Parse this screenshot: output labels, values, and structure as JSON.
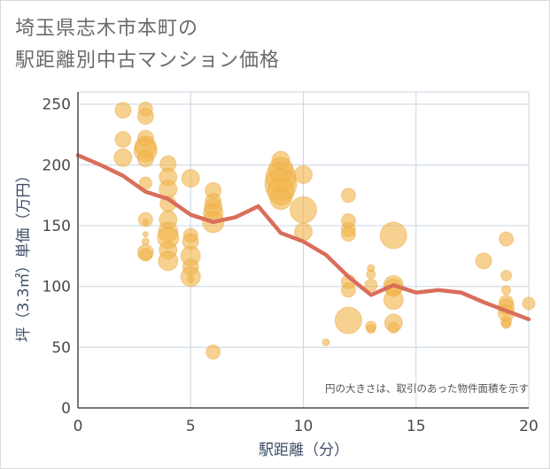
{
  "title_lines": [
    "埼玉県志木市本町の",
    "駅距離別中古マンション価格"
  ],
  "chart_data": {
    "type": "scatter",
    "title": "埼玉県志木市本町の駅距離別中古マンション価格",
    "xlabel": "駅距離（分）",
    "ylabel": "坪（3.3㎡）単価（万円）",
    "xlim": [
      0,
      20
    ],
    "ylim": [
      0,
      260
    ],
    "xticks": [
      0,
      5,
      10,
      15,
      20
    ],
    "yticks": [
      0,
      50,
      100,
      150,
      200,
      250
    ],
    "grid": true,
    "annotation": "円の大きさは、取引のあった物件面積を示す",
    "colors": {
      "bubble": "#f0b44c",
      "bubble_edge": "#e9a63a",
      "line": "#d96e5a",
      "grid": "#c9d6e3",
      "axis": "#4a4a4a"
    },
    "bubbles": [
      {
        "x": 2,
        "y": 245,
        "r": 9
      },
      {
        "x": 2,
        "y": 221,
        "r": 9
      },
      {
        "x": 2,
        "y": 206,
        "r": 10
      },
      {
        "x": 3,
        "y": 246,
        "r": 8
      },
      {
        "x": 3,
        "y": 240,
        "r": 9
      },
      {
        "x": 3,
        "y": 222,
        "r": 9
      },
      {
        "x": 3,
        "y": 215,
        "r": 12
      },
      {
        "x": 3,
        "y": 212,
        "r": 13
      },
      {
        "x": 3,
        "y": 205,
        "r": 9
      },
      {
        "x": 3,
        "y": 185,
        "r": 7
      },
      {
        "x": 3,
        "y": 155,
        "r": 8
      },
      {
        "x": 3,
        "y": 153,
        "r": 3
      },
      {
        "x": 3,
        "y": 143,
        "r": 3
      },
      {
        "x": 3,
        "y": 137,
        "r": 4
      },
      {
        "x": 3,
        "y": 128,
        "r": 9
      },
      {
        "x": 3,
        "y": 126,
        "r": 7
      },
      {
        "x": 4,
        "y": 201,
        "r": 9
      },
      {
        "x": 4,
        "y": 190,
        "r": 10
      },
      {
        "x": 4,
        "y": 180,
        "r": 10
      },
      {
        "x": 4,
        "y": 168,
        "r": 9
      },
      {
        "x": 4,
        "y": 155,
        "r": 10
      },
      {
        "x": 4,
        "y": 145,
        "r": 11
      },
      {
        "x": 4,
        "y": 140,
        "r": 12
      },
      {
        "x": 4,
        "y": 130,
        "r": 10
      },
      {
        "x": 4,
        "y": 121,
        "r": 11
      },
      {
        "x": 5,
        "y": 189,
        "r": 10
      },
      {
        "x": 5,
        "y": 142,
        "r": 8
      },
      {
        "x": 5,
        "y": 137,
        "r": 9
      },
      {
        "x": 5,
        "y": 125,
        "r": 11
      },
      {
        "x": 5,
        "y": 116,
        "r": 9
      },
      {
        "x": 5,
        "y": 108,
        "r": 11
      },
      {
        "x": 5,
        "y": 106,
        "r": 4
      },
      {
        "x": 6,
        "y": 179,
        "r": 9
      },
      {
        "x": 6,
        "y": 170,
        "r": 9
      },
      {
        "x": 6,
        "y": 165,
        "r": 10
      },
      {
        "x": 6,
        "y": 160,
        "r": 11
      },
      {
        "x": 6,
        "y": 153,
        "r": 12
      },
      {
        "x": 6,
        "y": 46,
        "r": 8
      },
      {
        "x": 9,
        "y": 204,
        "r": 10
      },
      {
        "x": 9,
        "y": 196,
        "r": 14
      },
      {
        "x": 9,
        "y": 190,
        "r": 17
      },
      {
        "x": 9,
        "y": 184,
        "r": 18
      },
      {
        "x": 9,
        "y": 178,
        "r": 15
      },
      {
        "x": 9,
        "y": 172,
        "r": 12
      },
      {
        "x": 10,
        "y": 192,
        "r": 10
      },
      {
        "x": 10,
        "y": 163,
        "r": 15
      },
      {
        "x": 10,
        "y": 145,
        "r": 10
      },
      {
        "x": 11,
        "y": 54,
        "r": 4
      },
      {
        "x": 12,
        "y": 175,
        "r": 8
      },
      {
        "x": 12,
        "y": 154,
        "r": 8
      },
      {
        "x": 12,
        "y": 147,
        "r": 8
      },
      {
        "x": 12,
        "y": 143,
        "r": 8
      },
      {
        "x": 12,
        "y": 104,
        "r": 8
      },
      {
        "x": 12,
        "y": 97,
        "r": 8
      },
      {
        "x": 12,
        "y": 72,
        "r": 15
      },
      {
        "x": 13,
        "y": 115,
        "r": 4
      },
      {
        "x": 13,
        "y": 110,
        "r": 5
      },
      {
        "x": 13,
        "y": 101,
        "r": 7
      },
      {
        "x": 13,
        "y": 67,
        "r": 6
      },
      {
        "x": 13,
        "y": 65,
        "r": 5
      },
      {
        "x": 14,
        "y": 142,
        "r": 15
      },
      {
        "x": 14,
        "y": 101,
        "r": 11
      },
      {
        "x": 14,
        "y": 99,
        "r": 10
      },
      {
        "x": 14,
        "y": 89,
        "r": 11
      },
      {
        "x": 14,
        "y": 70,
        "r": 10
      },
      {
        "x": 14,
        "y": 66,
        "r": 6
      },
      {
        "x": 18,
        "y": 121,
        "r": 9
      },
      {
        "x": 19,
        "y": 139,
        "r": 8
      },
      {
        "x": 19,
        "y": 109,
        "r": 6
      },
      {
        "x": 19,
        "y": 97,
        "r": 5
      },
      {
        "x": 19,
        "y": 87,
        "r": 8
      },
      {
        "x": 19,
        "y": 83,
        "r": 9
      },
      {
        "x": 19,
        "y": 78,
        "r": 9
      },
      {
        "x": 19,
        "y": 71,
        "r": 6
      },
      {
        "x": 19,
        "y": 69,
        "r": 5
      },
      {
        "x": 20,
        "y": 86,
        "r": 7
      }
    ],
    "series": [
      {
        "type": "line",
        "x": [
          0,
          1,
          2,
          3,
          4,
          5,
          6,
          7,
          8,
          9,
          10,
          11,
          12,
          13,
          14,
          15,
          16,
          17,
          18,
          19,
          20
        ],
        "values": [
          208,
          200,
          191,
          178,
          172,
          159,
          153,
          157,
          166,
          144,
          137,
          126,
          108,
          93,
          101,
          95,
          97,
          95,
          87,
          80,
          73
        ]
      }
    ]
  }
}
